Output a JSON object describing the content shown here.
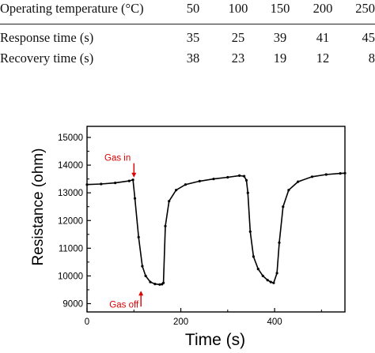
{
  "table": {
    "header": [
      "Operating temperature (°C)",
      "50",
      "100",
      "150",
      "200",
      "250"
    ],
    "rows": [
      [
        "Response time (s)",
        "35",
        "25",
        "39",
        "41",
        "45"
      ],
      [
        "Recovery time (s)",
        "38",
        "23",
        "19",
        "12",
        "8"
      ]
    ]
  },
  "chart_data": {
    "type": "line",
    "xlabel": "Time (s)",
    "ylabel": "Resistance (ohm)",
    "xlim": [
      0,
      550
    ],
    "ylim": [
      8700,
      15400
    ],
    "xticks": [
      0,
      200,
      400
    ],
    "yticks": [
      9000,
      10000,
      11000,
      12000,
      13000,
      14000,
      15000
    ],
    "grid": false,
    "series": [
      {
        "x": [
          0,
          30,
          60,
          90,
          98,
          102,
          110,
          118,
          125,
          135,
          145,
          155,
          160,
          163,
          167,
          175,
          190,
          210,
          240,
          270,
          300,
          325,
          335,
          340,
          343,
          348,
          355,
          365,
          375,
          385,
          392,
          398,
          405,
          410,
          418,
          430,
          450,
          480,
          510,
          540,
          550
        ],
        "y": [
          13300,
          13320,
          13360,
          13430,
          13470,
          12800,
          11400,
          10350,
          10000,
          9780,
          9710,
          9690,
          9700,
          9750,
          11800,
          12700,
          13100,
          13300,
          13420,
          13500,
          13560,
          13620,
          13600,
          13450,
          13000,
          11600,
          10700,
          10250,
          10000,
          9850,
          9780,
          9750,
          10100,
          11200,
          12500,
          13100,
          13400,
          13580,
          13660,
          13700,
          13710
        ]
      }
    ],
    "annotations": [
      {
        "text": "Gas in",
        "x": 100,
        "y": 13440,
        "arrow": "down",
        "color": "#e00000"
      },
      {
        "text": "Gas off",
        "x": 115,
        "y": 9690,
        "arrow": "up",
        "color": "#e00000"
      }
    ]
  }
}
